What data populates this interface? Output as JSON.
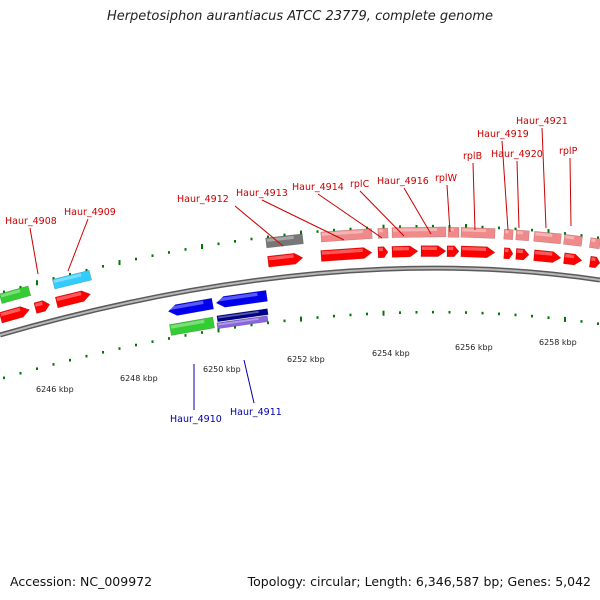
{
  "title": "Herpetosiphon aurantiacus ATCC 23779, complete genome",
  "footer": {
    "accession": "Accession: NC_009972",
    "summary": "Topology: circular; Length: 6,346,587 bp; Genes: 5,042"
  },
  "colors": {
    "plus_label": "#cc0000",
    "minus_label": "#0000aa",
    "backbone": "#888888",
    "tick": "#007700",
    "cds_red": "#ff0000",
    "gene_pink": "#f08a8a",
    "gene_green": "#33cc33",
    "gene_cyan": "#33ccff",
    "gene_blue": "#0000ee",
    "gene_navy": "#000088",
    "gene_lilac": "#8866dd",
    "gene_grey": "#777777"
  },
  "axis_labels": [
    "6246 kbp",
    "6248 kbp",
    "6250 kbp",
    "6252 kbp",
    "6254 kbp",
    "6256 kbp",
    "6258 kbp"
  ],
  "gene_labels": [
    {
      "text": "Haur_4908",
      "strand": "plus"
    },
    {
      "text": "Haur_4909",
      "strand": "plus"
    },
    {
      "text": "Haur_4910",
      "strand": "minus"
    },
    {
      "text": "Haur_4911",
      "strand": "minus"
    },
    {
      "text": "Haur_4912",
      "strand": "plus"
    },
    {
      "text": "Haur_4913",
      "strand": "plus"
    },
    {
      "text": "Haur_4914",
      "strand": "plus"
    },
    {
      "text": "rplC",
      "strand": "plus"
    },
    {
      "text": "Haur_4916",
      "strand": "plus"
    },
    {
      "text": "rplW",
      "strand": "plus"
    },
    {
      "text": "rplB",
      "strand": "plus"
    },
    {
      "text": "Haur_4919",
      "strand": "plus"
    },
    {
      "text": "Haur_4920",
      "strand": "plus"
    },
    {
      "text": "Haur_4921",
      "strand": "plus"
    },
    {
      "text": "rplP",
      "strand": "plus"
    }
  ]
}
